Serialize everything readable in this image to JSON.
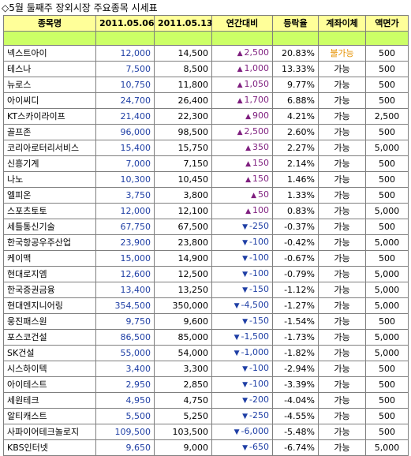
{
  "title": "◇5월 둘째주 장외시장 주요종목 시세표",
  "headers": [
    "종목명",
    "2011.05.06",
    "2011.05.13",
    "연간대비",
    "등락율",
    "계좌이체",
    "액면가"
  ],
  "rows": [
    {
      "name": "넥스트아이",
      "prev": "12,000",
      "cur": "14,500",
      "dir": "up",
      "diff": "2,500",
      "rate": "20.83%",
      "acct": "불가능",
      "par": "500"
    },
    {
      "name": "테스나",
      "prev": "7,500",
      "cur": "8,500",
      "dir": "up",
      "diff": "1,000",
      "rate": "13.33%",
      "acct": "가능",
      "par": "500"
    },
    {
      "name": "뉴로스",
      "prev": "10,750",
      "cur": "11,800",
      "dir": "up",
      "diff": "1,050",
      "rate": "9.77%",
      "acct": "가능",
      "par": "500"
    },
    {
      "name": "아이씨디",
      "prev": "24,700",
      "cur": "26,400",
      "dir": "up",
      "diff": "1,700",
      "rate": "6.88%",
      "acct": "가능",
      "par": "500"
    },
    {
      "name": "KT스카이라이프",
      "prev": "21,400",
      "cur": "22,300",
      "dir": "up",
      "diff": "900",
      "rate": "4.21%",
      "acct": "가능",
      "par": "2,500"
    },
    {
      "name": "골프존",
      "prev": "96,000",
      "cur": "98,500",
      "dir": "up",
      "diff": "2,500",
      "rate": "2.60%",
      "acct": "가능",
      "par": "500"
    },
    {
      "name": "코리아로터리서비스",
      "prev": "15,400",
      "cur": "15,750",
      "dir": "up",
      "diff": "350",
      "rate": "2.27%",
      "acct": "가능",
      "par": "5,000"
    },
    {
      "name": "신흥기계",
      "prev": "7,000",
      "cur": "7,150",
      "dir": "up",
      "diff": "150",
      "rate": "2.14%",
      "acct": "가능",
      "par": "500"
    },
    {
      "name": "나노",
      "prev": "10,300",
      "cur": "10,450",
      "dir": "up",
      "diff": "150",
      "rate": "1.46%",
      "acct": "가능",
      "par": "500"
    },
    {
      "name": "엘피온",
      "prev": "3,750",
      "cur": "3,800",
      "dir": "up",
      "diff": "50",
      "rate": "1.33%",
      "acct": "가능",
      "par": "500"
    },
    {
      "name": "스포츠토토",
      "prev": "12,000",
      "cur": "12,100",
      "dir": "up",
      "diff": "100",
      "rate": "0.83%",
      "acct": "가능",
      "par": "5,000"
    },
    {
      "name": "세틀통신기술",
      "prev": "67,750",
      "cur": "67,500",
      "dir": "down",
      "diff": "-250",
      "rate": "-0.37%",
      "acct": "가능",
      "par": "500"
    },
    {
      "name": "한국항공우주산업",
      "prev": "23,900",
      "cur": "23,800",
      "dir": "down",
      "diff": "-100",
      "rate": "-0.42%",
      "acct": "가능",
      "par": "5,000"
    },
    {
      "name": "케이맥",
      "prev": "15,000",
      "cur": "14,900",
      "dir": "down",
      "diff": "-100",
      "rate": "-0.67%",
      "acct": "가능",
      "par": "500"
    },
    {
      "name": "현대로지엠",
      "prev": "12,600",
      "cur": "12,500",
      "dir": "down",
      "diff": "-100",
      "rate": "-0.79%",
      "acct": "가능",
      "par": "5,000"
    },
    {
      "name": "한국증권금융",
      "prev": "13,400",
      "cur": "13,250",
      "dir": "down",
      "diff": "-150",
      "rate": "-1.12%",
      "acct": "가능",
      "par": "5,000"
    },
    {
      "name": "현대엔지니어링",
      "prev": "354,500",
      "cur": "350,000",
      "dir": "down",
      "diff": "-4,500",
      "rate": "-1.27%",
      "acct": "가능",
      "par": "5,000"
    },
    {
      "name": "웅진패스원",
      "prev": "9,750",
      "cur": "9,600",
      "dir": "down",
      "diff": "-150",
      "rate": "-1.54%",
      "acct": "가능",
      "par": "500"
    },
    {
      "name": "포스코건설",
      "prev": "86,500",
      "cur": "85,000",
      "dir": "down",
      "diff": "-1,500",
      "rate": "-1.73%",
      "acct": "가능",
      "par": "5,000"
    },
    {
      "name": "SK건설",
      "prev": "55,000",
      "cur": "54,000",
      "dir": "down",
      "diff": "-1,000",
      "rate": "-1.82%",
      "acct": "가능",
      "par": "5,000"
    },
    {
      "name": "시스하이텍",
      "prev": "3,400",
      "cur": "3,300",
      "dir": "down",
      "diff": "-100",
      "rate": "-2.94%",
      "acct": "가능",
      "par": "500"
    },
    {
      "name": "아이테스트",
      "prev": "2,950",
      "cur": "2,850",
      "dir": "down",
      "diff": "-100",
      "rate": "-3.39%",
      "acct": "가능",
      "par": "500"
    },
    {
      "name": "세원테크",
      "prev": "4,950",
      "cur": "4,750",
      "dir": "down",
      "diff": "-200",
      "rate": "-4.04%",
      "acct": "가능",
      "par": "500"
    },
    {
      "name": "알티캐스트",
      "prev": "5,500",
      "cur": "5,250",
      "dir": "down",
      "diff": "-250",
      "rate": "-4.55%",
      "acct": "가능",
      "par": "500"
    },
    {
      "name": "사파이어테크놀로지",
      "prev": "109,500",
      "cur": "103,500",
      "dir": "down",
      "diff": "-6,000",
      "rate": "-5.48%",
      "acct": "가능",
      "par": "500"
    },
    {
      "name": "KBS인터넷",
      "prev": "9,650",
      "cur": "9,000",
      "dir": "down",
      "diff": "-650",
      "rate": "-6.74%",
      "acct": "가능",
      "par": "5,000"
    }
  ],
  "colors": {
    "header_bg": "#ffff99",
    "band_bg": "#ccff66",
    "up": "#7f1f7f",
    "down": "#1f3fa5",
    "unavailable": "#e69100",
    "border": "#7f7f7f"
  },
  "icons": {
    "up": "triangle-up-icon",
    "down": "triangle-down-icon"
  }
}
